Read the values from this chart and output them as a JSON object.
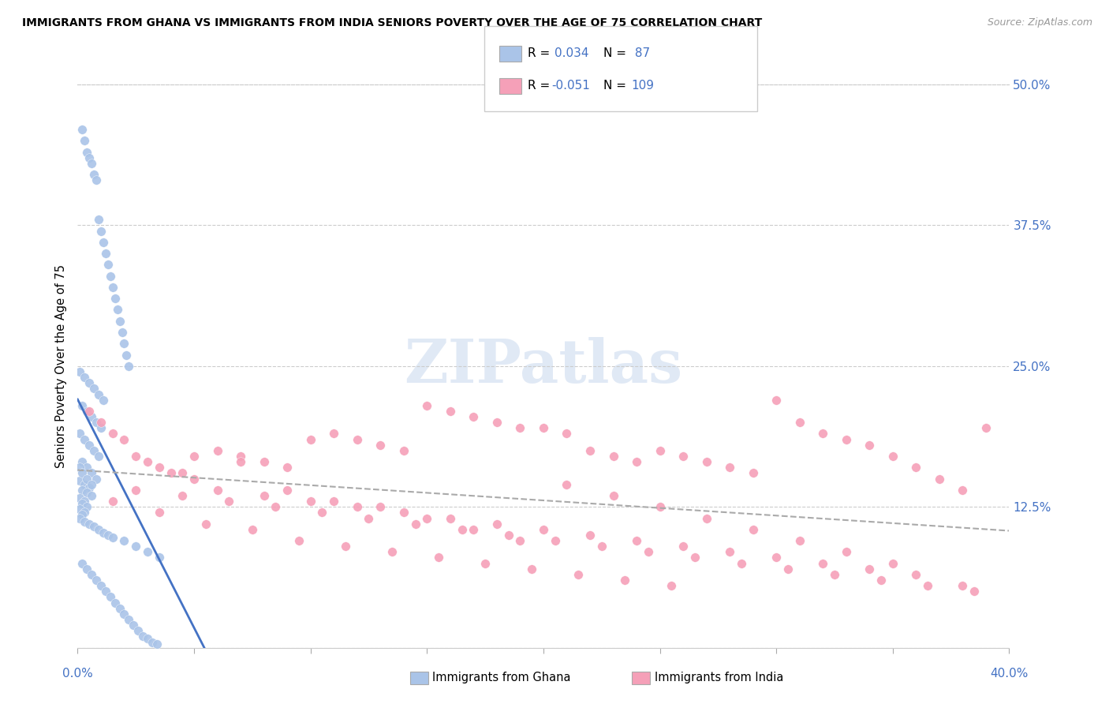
{
  "title": "IMMIGRANTS FROM GHANA VS IMMIGRANTS FROM INDIA SENIORS POVERTY OVER THE AGE OF 75 CORRELATION CHART",
  "source": "Source: ZipAtlas.com",
  "ylabel": "Seniors Poverty Over the Age of 75",
  "xlim": [
    0.0,
    0.4
  ],
  "ylim": [
    0.0,
    0.5
  ],
  "yticks": [
    0.0,
    0.125,
    0.25,
    0.375,
    0.5
  ],
  "ytick_labels": [
    "",
    "12.5%",
    "25.0%",
    "37.5%",
    "50.0%"
  ],
  "ghana_color": "#aac4e8",
  "india_color": "#f5a0b8",
  "ghana_line_color": "#4472c4",
  "india_trend_color": "#aaaaaa",
  "axis_label_color": "#4472c4",
  "ghana_R": 0.034,
  "ghana_N": 87,
  "india_R": -0.051,
  "india_N": 109,
  "ghana_x": [
    0.002,
    0.003,
    0.004,
    0.005,
    0.006,
    0.007,
    0.008,
    0.009,
    0.01,
    0.011,
    0.012,
    0.013,
    0.014,
    0.015,
    0.016,
    0.017,
    0.018,
    0.019,
    0.02,
    0.021,
    0.022,
    0.001,
    0.003,
    0.005,
    0.007,
    0.009,
    0.011,
    0.002,
    0.004,
    0.006,
    0.008,
    0.01,
    0.001,
    0.003,
    0.005,
    0.007,
    0.009,
    0.002,
    0.004,
    0.006,
    0.008,
    0.001,
    0.003,
    0.005,
    0.002,
    0.004,
    0.006,
    0.001,
    0.003,
    0.002,
    0.004,
    0.001,
    0.003,
    0.002,
    0.001,
    0.003,
    0.005,
    0.007,
    0.009,
    0.011,
    0.013,
    0.015,
    0.02,
    0.025,
    0.03,
    0.035,
    0.002,
    0.004,
    0.006,
    0.008,
    0.01,
    0.012,
    0.014,
    0.016,
    0.018,
    0.02,
    0.022,
    0.024,
    0.026,
    0.028,
    0.03,
    0.032,
    0.034,
    0.001,
    0.002,
    0.004,
    0.006
  ],
  "ghana_y": [
    0.46,
    0.45,
    0.44,
    0.435,
    0.43,
    0.42,
    0.415,
    0.38,
    0.37,
    0.36,
    0.35,
    0.34,
    0.33,
    0.32,
    0.31,
    0.3,
    0.29,
    0.28,
    0.27,
    0.26,
    0.25,
    0.245,
    0.24,
    0.235,
    0.23,
    0.225,
    0.22,
    0.215,
    0.21,
    0.205,
    0.2,
    0.195,
    0.19,
    0.185,
    0.18,
    0.175,
    0.17,
    0.165,
    0.16,
    0.155,
    0.15,
    0.148,
    0.145,
    0.142,
    0.14,
    0.138,
    0.135,
    0.133,
    0.13,
    0.128,
    0.125,
    0.123,
    0.12,
    0.118,
    0.115,
    0.112,
    0.11,
    0.108,
    0.105,
    0.102,
    0.1,
    0.098,
    0.095,
    0.09,
    0.085,
    0.08,
    0.075,
    0.07,
    0.065,
    0.06,
    0.055,
    0.05,
    0.045,
    0.04,
    0.035,
    0.03,
    0.025,
    0.02,
    0.015,
    0.01,
    0.008,
    0.005,
    0.003,
    0.16,
    0.155,
    0.15,
    0.145
  ],
  "india_x": [
    0.005,
    0.01,
    0.015,
    0.02,
    0.025,
    0.03,
    0.035,
    0.04,
    0.045,
    0.05,
    0.06,
    0.07,
    0.08,
    0.09,
    0.1,
    0.11,
    0.12,
    0.13,
    0.14,
    0.15,
    0.16,
    0.17,
    0.18,
    0.19,
    0.2,
    0.21,
    0.22,
    0.23,
    0.24,
    0.25,
    0.26,
    0.27,
    0.28,
    0.29,
    0.3,
    0.31,
    0.32,
    0.33,
    0.34,
    0.35,
    0.36,
    0.37,
    0.38,
    0.39,
    0.05,
    0.07,
    0.09,
    0.11,
    0.13,
    0.15,
    0.17,
    0.19,
    0.21,
    0.23,
    0.25,
    0.27,
    0.29,
    0.31,
    0.33,
    0.35,
    0.06,
    0.08,
    0.1,
    0.12,
    0.14,
    0.16,
    0.18,
    0.2,
    0.22,
    0.24,
    0.26,
    0.28,
    0.3,
    0.32,
    0.34,
    0.36,
    0.38,
    0.025,
    0.045,
    0.065,
    0.085,
    0.105,
    0.125,
    0.145,
    0.165,
    0.185,
    0.205,
    0.225,
    0.245,
    0.265,
    0.285,
    0.305,
    0.325,
    0.345,
    0.365,
    0.385,
    0.015,
    0.035,
    0.055,
    0.075,
    0.095,
    0.115,
    0.135,
    0.155,
    0.175,
    0.195,
    0.215,
    0.235,
    0.255
  ],
  "india_y": [
    0.21,
    0.2,
    0.19,
    0.185,
    0.17,
    0.165,
    0.16,
    0.155,
    0.155,
    0.15,
    0.175,
    0.17,
    0.165,
    0.16,
    0.185,
    0.19,
    0.185,
    0.18,
    0.175,
    0.215,
    0.21,
    0.205,
    0.2,
    0.195,
    0.195,
    0.19,
    0.175,
    0.17,
    0.165,
    0.175,
    0.17,
    0.165,
    0.16,
    0.155,
    0.22,
    0.2,
    0.19,
    0.185,
    0.18,
    0.17,
    0.16,
    0.15,
    0.14,
    0.195,
    0.17,
    0.165,
    0.14,
    0.13,
    0.125,
    0.115,
    0.105,
    0.095,
    0.145,
    0.135,
    0.125,
    0.115,
    0.105,
    0.095,
    0.085,
    0.075,
    0.14,
    0.135,
    0.13,
    0.125,
    0.12,
    0.115,
    0.11,
    0.105,
    0.1,
    0.095,
    0.09,
    0.085,
    0.08,
    0.075,
    0.07,
    0.065,
    0.055,
    0.14,
    0.135,
    0.13,
    0.125,
    0.12,
    0.115,
    0.11,
    0.105,
    0.1,
    0.095,
    0.09,
    0.085,
    0.08,
    0.075,
    0.07,
    0.065,
    0.06,
    0.055,
    0.05,
    0.13,
    0.12,
    0.11,
    0.105,
    0.095,
    0.09,
    0.085,
    0.08,
    0.075,
    0.07,
    0.065,
    0.06,
    0.055
  ]
}
